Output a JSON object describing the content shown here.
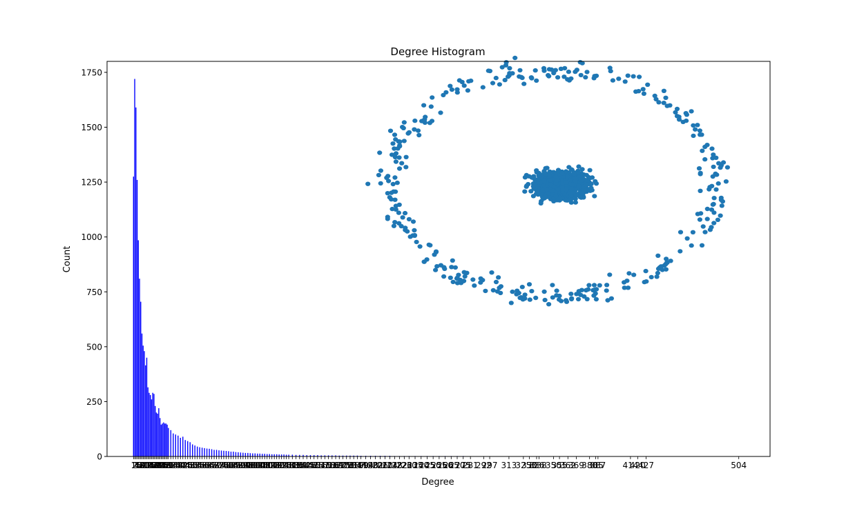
{
  "chart_data": [
    {
      "type": "bar",
      "title": "Degree Histogram",
      "xlabel": "Degree",
      "ylabel": "Count",
      "bar_color": "#0000ff",
      "ylim": [
        0,
        1800
      ],
      "xlim": [
        -21,
        530
      ],
      "yticks": [
        0,
        250,
        500,
        750,
        1000,
        1250,
        1500,
        1750
      ],
      "x": [
        1,
        2,
        3,
        4,
        5,
        6,
        7,
        8,
        9,
        10,
        11,
        12,
        13,
        14,
        15,
        16,
        17,
        18,
        19,
        20,
        21,
        22,
        23,
        24,
        25,
        26,
        27,
        28,
        29,
        30,
        32,
        34,
        36,
        38,
        40,
        42,
        44,
        46,
        48,
        50,
        52,
        54,
        56,
        58,
        60,
        62,
        64,
        66,
        68,
        70,
        72,
        74,
        76,
        78,
        80,
        82,
        84,
        86,
        88,
        90,
        92,
        94,
        96,
        98,
        100,
        102,
        104,
        106,
        108,
        110,
        112,
        114,
        116,
        118,
        120,
        122,
        124,
        126,
        128,
        130,
        133,
        136,
        139,
        142,
        145,
        148,
        151,
        154,
        157,
        160,
        163,
        166,
        169,
        172,
        175,
        178,
        181,
        184,
        187,
        190,
        194,
        198,
        202,
        206,
        210,
        214,
        218,
        222,
        226,
        230,
        235,
        240,
        245,
        250,
        255,
        260,
        265,
        270,
        275,
        281,
        292,
        297,
        313,
        325,
        330,
        336,
        338,
        350,
        355,
        362,
        369,
        380,
        385,
        387,
        414,
        420,
        427,
        504
      ],
      "counts": [
        1275,
        1720,
        1590,
        1260,
        985,
        810,
        705,
        560,
        505,
        480,
        415,
        450,
        315,
        290,
        280,
        260,
        290,
        285,
        230,
        200,
        195,
        220,
        175,
        145,
        150,
        155,
        150,
        150,
        145,
        130,
        120,
        105,
        100,
        95,
        85,
        90,
        75,
        70,
        65,
        55,
        50,
        45,
        42,
        40,
        38,
        36,
        35,
        33,
        30,
        30,
        28,
        27,
        26,
        25,
        24,
        22,
        22,
        20,
        19,
        18,
        17,
        16,
        16,
        15,
        14,
        14,
        13,
        13,
        12,
        12,
        11,
        11,
        10,
        10,
        10,
        9,
        9,
        9,
        8,
        8,
        8,
        7,
        7,
        7,
        6,
        6,
        6,
        6,
        5,
        5,
        5,
        5,
        5,
        4,
        4,
        4,
        4,
        4,
        4,
        3,
        3,
        3,
        3,
        3,
        3,
        3,
        2,
        2,
        2,
        2,
        2,
        2,
        2,
        2,
        2,
        2,
        2,
        2,
        2,
        1,
        1,
        1,
        1,
        1,
        1,
        1,
        1,
        1,
        1,
        1,
        1,
        1,
        1,
        1,
        1,
        1,
        1,
        1
      ],
      "readable_xtick_labels": [
        "281",
        "292",
        "297",
        "313",
        "325",
        "330",
        "336",
        "338",
        "350",
        "355",
        "362",
        "369",
        "380",
        "385",
        "387",
        "414",
        "420",
        "427",
        "504"
      ]
    },
    {
      "type": "scatter",
      "description_series": "graph drawing overlay (node layout)",
      "point_color": "#1f77b4"
    }
  ]
}
